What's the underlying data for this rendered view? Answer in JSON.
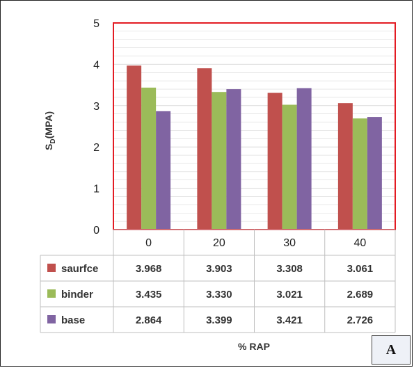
{
  "panel_label": "A",
  "colors": {
    "surface": "#c0504d",
    "binder": "#9bbb59",
    "base": "#8064a2",
    "plot_border": "#e31b23",
    "grid": "#d9d9d9"
  },
  "chart_data": {
    "type": "bar",
    "title": "",
    "xlabel": "% RAP",
    "ylabel_main": "S",
    "ylabel_sub": "D",
    "ylabel_unit": "(MPA)",
    "ylim": [
      0,
      5
    ],
    "yticks": [
      "0",
      "1",
      "2",
      "3",
      "4",
      "5"
    ],
    "categories": [
      "0",
      "20",
      "30",
      "40"
    ],
    "series": [
      {
        "name": "saurfce",
        "color": "#c0504d",
        "values": [
          3.968,
          3.903,
          3.308,
          3.061
        ],
        "labels": [
          "3.968",
          "3.903",
          "3.308",
          "3.061"
        ]
      },
      {
        "name": "binder",
        "color": "#9bbb59",
        "values": [
          3.435,
          3.33,
          3.021,
          2.689
        ],
        "labels": [
          "3.435",
          "3.330",
          "3.021",
          "2.689"
        ]
      },
      {
        "name": "base",
        "color": "#8064a2",
        "values": [
          2.864,
          3.399,
          3.421,
          2.726
        ],
        "labels": [
          "2.864",
          "3.399",
          "3.421",
          "2.726"
        ]
      }
    ],
    "grid": true,
    "legend": "data-table"
  }
}
